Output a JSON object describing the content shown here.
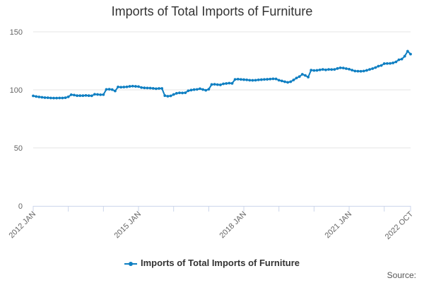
{
  "chart_data": {
    "type": "line",
    "title": "Imports of Total Imports of Furniture",
    "xlabel": "",
    "ylabel": "",
    "x_tick_labels": [
      "2012 JAN",
      "2015 JAN",
      "2018 JAN",
      "2021 JAN",
      "2022 OCT"
    ],
    "y_ticks": [
      0,
      50,
      100,
      150
    ],
    "ylim": [
      0,
      150
    ],
    "grid": true,
    "legend_position": "bottom",
    "series": [
      {
        "name": "Imports of Total Imports of Furniture",
        "color": "#0f7fc2",
        "points": [
          [
            "2012-01",
            94.8
          ],
          [
            "2012-02",
            94.3
          ],
          [
            "2012-03",
            93.9
          ],
          [
            "2012-04",
            93.6
          ],
          [
            "2012-05",
            93.3
          ],
          [
            "2012-06",
            93.2
          ],
          [
            "2012-07",
            93.0
          ],
          [
            "2012-08",
            92.9
          ],
          [
            "2012-09",
            92.9
          ],
          [
            "2012-10",
            93.0
          ],
          [
            "2012-11",
            93.0
          ],
          [
            "2012-12",
            93.2
          ],
          [
            "2013-01",
            94.0
          ],
          [
            "2013-02",
            95.8
          ],
          [
            "2013-03",
            95.5
          ],
          [
            "2013-04",
            95.0
          ],
          [
            "2013-05",
            95.0
          ],
          [
            "2013-06",
            95.0
          ],
          [
            "2013-07",
            95.2
          ],
          [
            "2013-08",
            95.0
          ],
          [
            "2013-09",
            94.9
          ],
          [
            "2013-10",
            96.2
          ],
          [
            "2013-11",
            96.0
          ],
          [
            "2013-12",
            95.8
          ],
          [
            "2014-01",
            95.9
          ],
          [
            "2014-02",
            100.4
          ],
          [
            "2014-03",
            100.5
          ],
          [
            "2014-04",
            100.2
          ],
          [
            "2014-05",
            99.0
          ],
          [
            "2014-06",
            102.5
          ],
          [
            "2014-07",
            102.3
          ],
          [
            "2014-08",
            102.4
          ],
          [
            "2014-09",
            102.6
          ],
          [
            "2014-10",
            103.0
          ],
          [
            "2014-11",
            103.2
          ],
          [
            "2014-12",
            103.0
          ],
          [
            "2015-01",
            102.8
          ],
          [
            "2015-02",
            102.0
          ],
          [
            "2015-03",
            101.7
          ],
          [
            "2015-04",
            101.6
          ],
          [
            "2015-05",
            101.5
          ],
          [
            "2015-06",
            101.3
          ],
          [
            "2015-07",
            101.0
          ],
          [
            "2015-08",
            101.2
          ],
          [
            "2015-09",
            101.2
          ],
          [
            "2015-10",
            95.0
          ],
          [
            "2015-11",
            94.5
          ],
          [
            "2015-12",
            94.8
          ],
          [
            "2016-01",
            96.0
          ],
          [
            "2016-02",
            97.0
          ],
          [
            "2016-03",
            97.4
          ],
          [
            "2016-04",
            97.3
          ],
          [
            "2016-05",
            97.5
          ],
          [
            "2016-06",
            99.2
          ],
          [
            "2016-07",
            99.8
          ],
          [
            "2016-08",
            100.2
          ],
          [
            "2016-09",
            100.4
          ],
          [
            "2016-10",
            101.0
          ],
          [
            "2016-11",
            100.3
          ],
          [
            "2016-12",
            99.6
          ],
          [
            "2017-01",
            100.5
          ],
          [
            "2017-02",
            104.6
          ],
          [
            "2017-03",
            104.8
          ],
          [
            "2017-04",
            104.5
          ],
          [
            "2017-05",
            104.3
          ],
          [
            "2017-06",
            105.2
          ],
          [
            "2017-07",
            105.5
          ],
          [
            "2017-08",
            105.8
          ],
          [
            "2017-09",
            105.6
          ],
          [
            "2017-10",
            109.0
          ],
          [
            "2017-11",
            109.2
          ],
          [
            "2017-12",
            109.0
          ],
          [
            "2018-01",
            108.8
          ],
          [
            "2018-02",
            108.6
          ],
          [
            "2018-03",
            108.3
          ],
          [
            "2018-04",
            108.2
          ],
          [
            "2018-05",
            108.3
          ],
          [
            "2018-06",
            108.6
          ],
          [
            "2018-07",
            108.8
          ],
          [
            "2018-08",
            109.0
          ],
          [
            "2018-09",
            109.1
          ],
          [
            "2018-10",
            109.3
          ],
          [
            "2018-11",
            109.5
          ],
          [
            "2018-12",
            109.4
          ],
          [
            "2019-01",
            108.3
          ],
          [
            "2019-02",
            107.7
          ],
          [
            "2019-03",
            107.0
          ],
          [
            "2019-04",
            106.5
          ],
          [
            "2019-05",
            107.0
          ],
          [
            "2019-06",
            108.5
          ],
          [
            "2019-07",
            110.2
          ],
          [
            "2019-08",
            111.4
          ],
          [
            "2019-09",
            113.4
          ],
          [
            "2019-10",
            112.4
          ],
          [
            "2019-11",
            111.0
          ],
          [
            "2019-12",
            117.0
          ],
          [
            "2020-01",
            116.7
          ],
          [
            "2020-02",
            116.8
          ],
          [
            "2020-03",
            117.2
          ],
          [
            "2020-04",
            117.6
          ],
          [
            "2020-05",
            117.2
          ],
          [
            "2020-06",
            117.6
          ],
          [
            "2020-07",
            117.5
          ],
          [
            "2020-08",
            117.6
          ],
          [
            "2020-09",
            118.4
          ],
          [
            "2020-10",
            119.0
          ],
          [
            "2020-11",
            118.8
          ],
          [
            "2020-12",
            118.3
          ],
          [
            "2021-01",
            117.8
          ],
          [
            "2021-02",
            117.0
          ],
          [
            "2021-03",
            116.2
          ],
          [
            "2021-04",
            116.1
          ],
          [
            "2021-05",
            116.0
          ],
          [
            "2021-06",
            116.2
          ],
          [
            "2021-07",
            116.8
          ],
          [
            "2021-08",
            117.6
          ],
          [
            "2021-09",
            118.3
          ],
          [
            "2021-10",
            119.2
          ],
          [
            "2021-11",
            120.4
          ],
          [
            "2021-12",
            121.0
          ],
          [
            "2022-01",
            122.6
          ],
          [
            "2022-02",
            122.7
          ],
          [
            "2022-03",
            122.8
          ],
          [
            "2022-04",
            123.2
          ],
          [
            "2022-05",
            124.1
          ],
          [
            "2022-06",
            125.9
          ],
          [
            "2022-07",
            126.5
          ],
          [
            "2022-08",
            129.0
          ],
          [
            "2022-09",
            133.3
          ],
          [
            "2022-10",
            130.8
          ]
        ]
      }
    ]
  },
  "source_label": "Source:"
}
